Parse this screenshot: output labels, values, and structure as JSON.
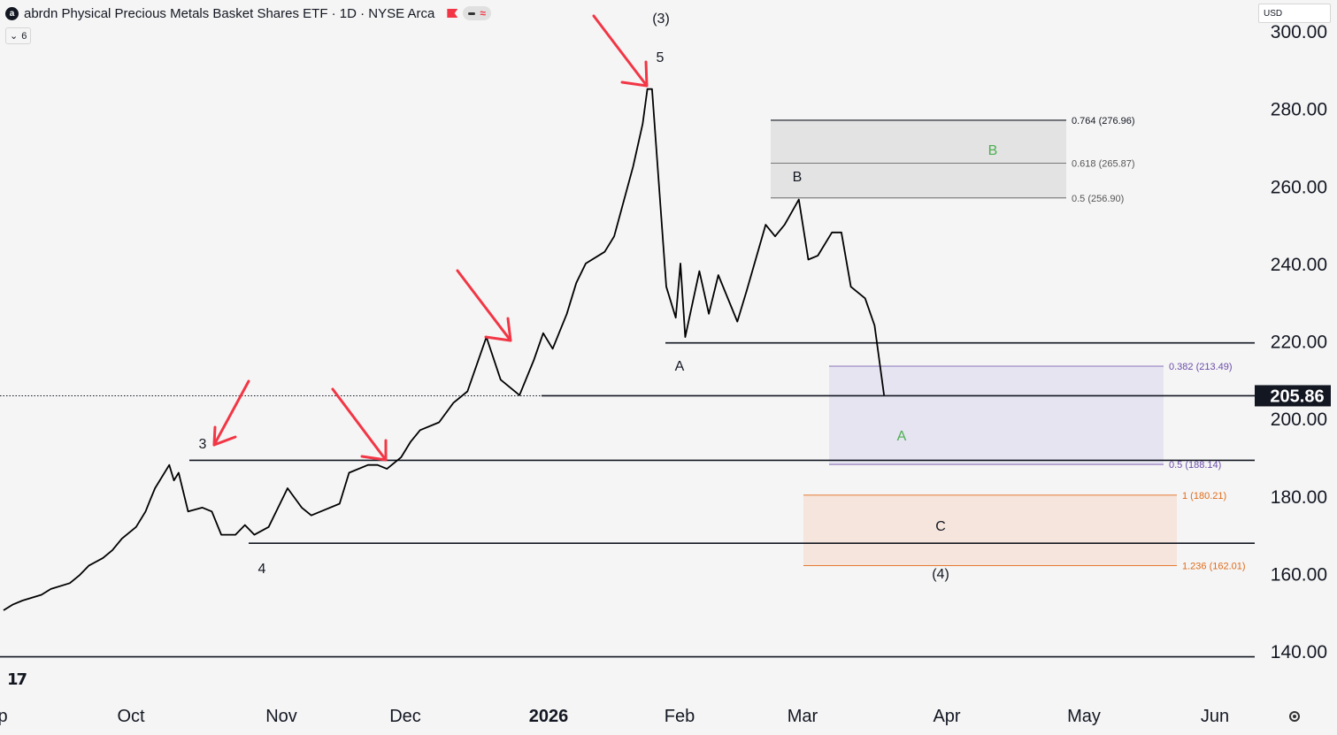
{
  "header": {
    "logo_letter": "a",
    "title": "abrdn Physical Precious Metals Basket Shares ETF · 1D · NYSE Arca",
    "pill_wave": "≈",
    "indicator_toggle": "6"
  },
  "currency_selector": "USD",
  "chart_data": {
    "type": "line",
    "title": "abrdn Physical Precious Metals Basket Shares ETF · 1D · NYSE Arca",
    "ylim": [
      132,
      303
    ],
    "y_ticks": [
      140,
      160,
      180,
      200,
      220,
      240,
      260,
      280,
      300
    ],
    "y_tick_labels": [
      "140.00",
      "160.00",
      "180.00",
      "200.00",
      "220.00",
      "240.00",
      "260.00",
      "280.00",
      "300.00"
    ],
    "x_tick_labels": [
      "p",
      "Oct",
      "Nov",
      "Dec",
      "2026",
      "Feb",
      "Mar",
      "Apr",
      "May",
      "Jun"
    ],
    "x_range": [
      "2025-09-15",
      "2026-06-22"
    ],
    "last_price": 205.86,
    "last_price_label": "205.86",
    "line_color": "#000000",
    "series": [
      {
        "x": [
          "2025-09-15",
          "2025-09-17",
          "2025-09-19",
          "2025-09-23",
          "2025-09-25",
          "2025-09-29",
          "2025-10-01",
          "2025-10-03",
          "2025-10-06",
          "2025-10-08",
          "2025-10-10",
          "2025-10-13",
          "2025-10-15",
          "2025-10-16",
          "2025-10-17",
          "2025-10-20",
          "2025-10-21",
          "2025-10-22",
          "2025-10-24",
          "2025-10-27",
          "2025-10-29",
          "2025-10-31",
          "2025-11-03",
          "2025-11-05",
          "2025-11-07",
          "2025-11-10",
          "2025-11-12",
          "2025-11-14",
          "2025-11-17",
          "2025-11-19",
          "2025-11-21",
          "2025-11-25",
          "2025-11-27",
          "2025-12-01",
          "2025-12-03",
          "2025-12-05",
          "2025-12-08",
          "2025-12-10",
          "2025-12-12",
          "2025-12-16",
          "2025-12-19",
          "2025-12-22",
          "2025-12-24",
          "2025-12-26",
          "2025-12-29",
          "2026-01-02",
          "2026-01-05",
          "2026-01-07",
          "2026-01-09",
          "2026-01-12",
          "2026-01-14",
          "2026-01-16",
          "2026-01-20",
          "2026-01-22",
          "2026-01-26",
          "2026-01-28",
          "2026-01-29",
          "2026-01-30",
          "2026-02-02",
          "2026-02-04",
          "2026-02-05",
          "2026-02-06",
          "2026-02-09",
          "2026-02-11",
          "2026-02-13",
          "2026-02-17",
          "2026-02-19",
          "2026-02-23",
          "2026-02-25",
          "2026-02-27",
          "2026-03-02",
          "2026-03-04",
          "2026-03-06",
          "2026-03-09",
          "2026-03-11",
          "2026-03-13",
          "2026-03-16",
          "2026-03-18",
          "2026-03-20"
        ],
        "y": [
          150.5,
          152,
          153,
          154.5,
          156,
          157.5,
          159.5,
          162,
          164,
          166,
          169,
          172,
          176,
          179,
          182,
          188,
          184,
          186,
          176,
          177,
          176,
          170,
          170,
          172.5,
          170,
          172,
          177,
          182,
          177,
          175,
          176,
          178,
          186,
          188,
          188,
          187,
          190,
          194,
          197,
          199,
          204,
          207,
          214,
          221,
          210,
          206,
          215,
          222,
          218,
          227,
          235,
          240,
          243,
          247,
          265,
          276,
          285,
          285,
          234,
          226,
          240,
          221,
          238,
          227,
          237,
          225,
          233,
          250,
          247,
          250,
          256.5,
          241,
          242,
          248,
          248,
          234,
          231,
          224,
          206
        ]
      }
    ],
    "wave_labels": [
      "(3)",
      "5",
      "3",
      "4",
      "A",
      "B",
      "A",
      "B",
      "C",
      "(4)"
    ],
    "fib_levels": [
      {
        "ratio": "0.764",
        "price": 276.96,
        "label": "0.764 (276.96)",
        "group": "B-target",
        "color": "#131722"
      },
      {
        "ratio": "0.618",
        "price": 265.87,
        "label": "0.618 (265.87)",
        "group": "B-target",
        "color": "#555555"
      },
      {
        "ratio": "0.5",
        "price": 256.9,
        "label": "0.5 (256.90)",
        "group": "B-target",
        "color": "#555555"
      },
      {
        "ratio": "0.382",
        "price": 213.49,
        "label": "0.382 (213.49)",
        "group": "A-target",
        "color": "#6a4ca8"
      },
      {
        "ratio": "0.5",
        "price": 188.14,
        "label": "0.5 (188.14)",
        "group": "A-target",
        "color": "#6a4ca8"
      },
      {
        "ratio": "1",
        "price": 180.21,
        "label": "1 (180.21)",
        "group": "C-target",
        "color": "#e06b1a"
      },
      {
        "ratio": "1.236",
        "price": 162.01,
        "label": "1.236 (162.01)",
        "group": "C-target",
        "color": "#e06b1a"
      }
    ],
    "horizontal_levels": [
      219.5,
      189.2,
      167.8,
      138.5
    ],
    "zone_colors": {
      "B-target": "#e3e3e3",
      "A-target": "#e6e4f1",
      "C-target": "#f5e5dc"
    },
    "arrow_color": "#f23645",
    "green_label_color": "#4caf50",
    "grid": false,
    "legend": "none"
  }
}
